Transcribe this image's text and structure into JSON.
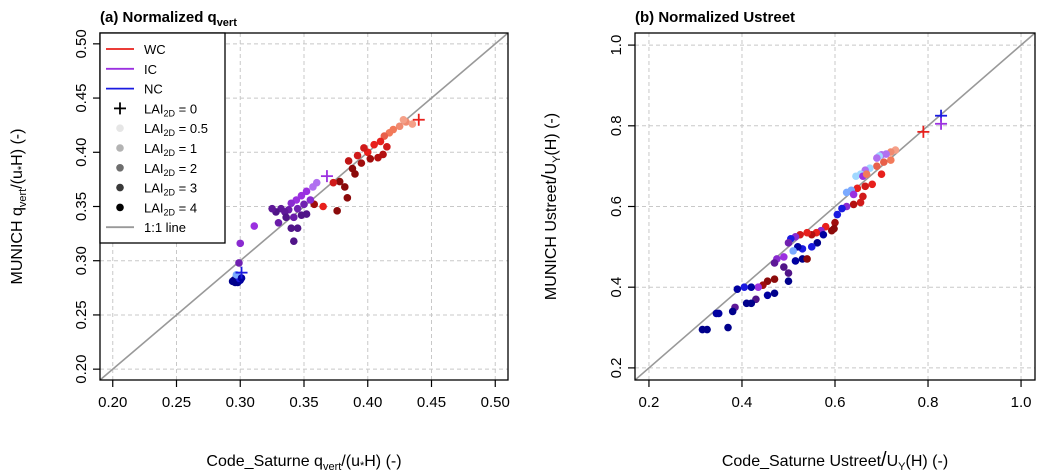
{
  "chart_data": [
    {
      "type": "scatter",
      "title": "(a) Normalized q",
      "title_sub": "vert",
      "xlabel": {
        "pre": "Code_Saturne q",
        "sub": "vert",
        "post": "/(u",
        "sub2": "*",
        "post2": "H) (-)"
      },
      "ylabel": {
        "pre": "MUNICH q",
        "sub": "vert",
        "post": "/(u",
        "sub2": "*",
        "post2": "H) (-)"
      },
      "xlim": [
        0.19,
        0.51
      ],
      "ylim": [
        0.19,
        0.51
      ],
      "xticks": [
        "0.20",
        "0.25",
        "0.30",
        "0.35",
        "0.40",
        "0.45",
        "0.50"
      ],
      "yticks": [
        "0.20",
        "0.25",
        "0.30",
        "0.35",
        "0.40",
        "0.45",
        "0.50"
      ],
      "grid": true,
      "legend_position": "top-left",
      "reference_line": "1:1 line",
      "legend": [
        {
          "label": "WC",
          "kind": "line",
          "color": "#e8201c"
        },
        {
          "label": "IC",
          "kind": "line",
          "color": "#9b30e0"
        },
        {
          "label": "NC",
          "kind": "line",
          "color": "#1a1ae0"
        },
        {
          "label": "LAI",
          "sub": "2D",
          "suffix": " = 0",
          "kind": "plus",
          "color": "#000000"
        },
        {
          "label": "LAI",
          "sub": "2D",
          "suffix": " = 0.5",
          "kind": "dot",
          "color": "#e6e6e6"
        },
        {
          "label": "LAI",
          "sub": "2D",
          "suffix": " = 1",
          "kind": "dot",
          "color": "#b3b3b3"
        },
        {
          "label": "LAI",
          "sub": "2D",
          "suffix": " = 2",
          "kind": "dot",
          "color": "#6e6e6e"
        },
        {
          "label": "LAI",
          "sub": "2D",
          "suffix": " = 3",
          "kind": "dot",
          "color": "#3a3a3a"
        },
        {
          "label": "LAI",
          "sub": "2D",
          "suffix": " = 4",
          "kind": "dot",
          "color": "#000000"
        },
        {
          "label": "1:1 line",
          "kind": "line",
          "color": "#999999"
        }
      ],
      "plus_markers": [
        {
          "x": 0.44,
          "y": 0.43,
          "color": "#e8201c"
        },
        {
          "x": 0.368,
          "y": 0.378,
          "color": "#9b30e0"
        },
        {
          "x": 0.301,
          "y": 0.289,
          "color": "#1a1ae0"
        }
      ],
      "points": [
        {
          "x": 0.43,
          "y": 0.428,
          "color": "#f08a70"
        },
        {
          "x": 0.425,
          "y": 0.424,
          "color": "#f08a70"
        },
        {
          "x": 0.42,
          "y": 0.421,
          "color": "#f27a5a"
        },
        {
          "x": 0.417,
          "y": 0.418,
          "color": "#f27a5a"
        },
        {
          "x": 0.413,
          "y": 0.415,
          "color": "#e8604a"
        },
        {
          "x": 0.435,
          "y": 0.426,
          "color": "#f5a088"
        },
        {
          "x": 0.428,
          "y": 0.43,
          "color": "#f5a088"
        },
        {
          "x": 0.41,
          "y": 0.41,
          "color": "#e8201c"
        },
        {
          "x": 0.405,
          "y": 0.407,
          "color": "#e8201c"
        },
        {
          "x": 0.4,
          "y": 0.4,
          "color": "#e8201c"
        },
        {
          "x": 0.397,
          "y": 0.404,
          "color": "#d01a1a"
        },
        {
          "x": 0.392,
          "y": 0.397,
          "color": "#d01a1a"
        },
        {
          "x": 0.415,
          "y": 0.405,
          "color": "#d01a1a"
        },
        {
          "x": 0.412,
          "y": 0.398,
          "color": "#b41010"
        },
        {
          "x": 0.408,
          "y": 0.395,
          "color": "#b41010"
        },
        {
          "x": 0.402,
          "y": 0.394,
          "color": "#a00d0d"
        },
        {
          "x": 0.395,
          "y": 0.39,
          "color": "#a00d0d"
        },
        {
          "x": 0.388,
          "y": 0.385,
          "color": "#8b0a0a"
        },
        {
          "x": 0.39,
          "y": 0.38,
          "color": "#8b0a0a"
        },
        {
          "x": 0.385,
          "y": 0.392,
          "color": "#c01515"
        },
        {
          "x": 0.382,
          "y": 0.368,
          "color": "#8b0a0a"
        },
        {
          "x": 0.378,
          "y": 0.373,
          "color": "#8b0a0a"
        },
        {
          "x": 0.373,
          "y": 0.372,
          "color": "#d01a1a"
        },
        {
          "x": 0.384,
          "y": 0.358,
          "color": "#8b0a0a"
        },
        {
          "x": 0.376,
          "y": 0.346,
          "color": "#8b0a0a"
        },
        {
          "x": 0.365,
          "y": 0.35,
          "color": "#e8201c"
        },
        {
          "x": 0.358,
          "y": 0.352,
          "color": "#a00d0d"
        },
        {
          "x": 0.36,
          "y": 0.372,
          "color": "#b070f0"
        },
        {
          "x": 0.357,
          "y": 0.368,
          "color": "#b070f0"
        },
        {
          "x": 0.352,
          "y": 0.364,
          "color": "#9b30e0"
        },
        {
          "x": 0.348,
          "y": 0.36,
          "color": "#9b30e0"
        },
        {
          "x": 0.344,
          "y": 0.356,
          "color": "#9b30e0"
        },
        {
          "x": 0.34,
          "y": 0.353,
          "color": "#8a2bd0"
        },
        {
          "x": 0.355,
          "y": 0.356,
          "color": "#8a2bd0"
        },
        {
          "x": 0.35,
          "y": 0.352,
          "color": "#7020b0"
        },
        {
          "x": 0.345,
          "y": 0.348,
          "color": "#7020b0"
        },
        {
          "x": 0.338,
          "y": 0.347,
          "color": "#6a1ca8"
        },
        {
          "x": 0.335,
          "y": 0.345,
          "color": "#5e1898"
        },
        {
          "x": 0.332,
          "y": 0.348,
          "color": "#5e1898"
        },
        {
          "x": 0.328,
          "y": 0.345,
          "color": "#501488"
        },
        {
          "x": 0.336,
          "y": 0.34,
          "color": "#501488"
        },
        {
          "x": 0.325,
          "y": 0.348,
          "color": "#5e1898"
        },
        {
          "x": 0.342,
          "y": 0.34,
          "color": "#6a1ca8"
        },
        {
          "x": 0.348,
          "y": 0.342,
          "color": "#501488"
        },
        {
          "x": 0.352,
          "y": 0.343,
          "color": "#501488"
        },
        {
          "x": 0.34,
          "y": 0.33,
          "color": "#501488"
        },
        {
          "x": 0.345,
          "y": 0.33,
          "color": "#501488"
        },
        {
          "x": 0.33,
          "y": 0.335,
          "color": "#6a1ca8"
        },
        {
          "x": 0.342,
          "y": 0.318,
          "color": "#501488"
        },
        {
          "x": 0.311,
          "y": 0.332,
          "color": "#9b30e0"
        },
        {
          "x": 0.3,
          "y": 0.316,
          "color": "#8a2bd0"
        },
        {
          "x": 0.299,
          "y": 0.298,
          "color": "#7020b0"
        },
        {
          "x": 0.297,
          "y": 0.285,
          "color": "#00008b"
        },
        {
          "x": 0.295,
          "y": 0.282,
          "color": "#00008b"
        },
        {
          "x": 0.296,
          "y": 0.28,
          "color": "#00008b"
        },
        {
          "x": 0.298,
          "y": 0.28,
          "color": "#00008b"
        },
        {
          "x": 0.3,
          "y": 0.282,
          "color": "#0000a0"
        },
        {
          "x": 0.299,
          "y": 0.284,
          "color": "#1a1ae0"
        },
        {
          "x": 0.297,
          "y": 0.287,
          "color": "#7aaaff"
        },
        {
          "x": 0.301,
          "y": 0.284,
          "color": "#0000a0"
        },
        {
          "x": 0.294,
          "y": 0.281,
          "color": "#00008b"
        }
      ]
    },
    {
      "type": "scatter",
      "title": "(b) Normalized Ustreet",
      "xlabel": {
        "pre": "Code_Saturne Ustreet",
        "slash": "/",
        "u": "U",
        "sub": "Y",
        "post": "(H) (-)"
      },
      "ylabel": {
        "pre": "MUNICH Ustreet",
        "slash": "/",
        "u": "U",
        "sub": "Y",
        "post": "(H) (-)"
      },
      "xlim": [
        0.17,
        1.03
      ],
      "ylim": [
        0.17,
        1.03
      ],
      "xticks": [
        "0.2",
        "0.4",
        "0.6",
        "0.8",
        "1.0"
      ],
      "yticks": [
        "0.2",
        "0.4",
        "0.6",
        "0.8",
        "1.0"
      ],
      "grid": true,
      "reference_line": "1:1 line",
      "plus_markers": [
        {
          "x": 0.79,
          "y": 0.785,
          "color": "#e8201c"
        },
        {
          "x": 0.828,
          "y": 0.825,
          "color": "#1a1ae0"
        },
        {
          "x": 0.828,
          "y": 0.805,
          "color": "#9b30e0"
        }
      ],
      "points": [
        {
          "x": 0.73,
          "y": 0.74,
          "color": "#f5a088"
        },
        {
          "x": 0.72,
          "y": 0.735,
          "color": "#f08a70"
        },
        {
          "x": 0.71,
          "y": 0.73,
          "color": "#b070f0"
        },
        {
          "x": 0.7,
          "y": 0.728,
          "color": "#b070f0"
        },
        {
          "x": 0.695,
          "y": 0.725,
          "color": "#a0d8ff"
        },
        {
          "x": 0.69,
          "y": 0.72,
          "color": "#b070f0"
        },
        {
          "x": 0.72,
          "y": 0.715,
          "color": "#f27a5a"
        },
        {
          "x": 0.705,
          "y": 0.71,
          "color": "#e8604a"
        },
        {
          "x": 0.69,
          "y": 0.7,
          "color": "#e8604a"
        },
        {
          "x": 0.675,
          "y": 0.695,
          "color": "#a0d8ff"
        },
        {
          "x": 0.665,
          "y": 0.69,
          "color": "#b070f0"
        },
        {
          "x": 0.655,
          "y": 0.68,
          "color": "#a0d8ff"
        },
        {
          "x": 0.645,
          "y": 0.675,
          "color": "#a0d8ff"
        },
        {
          "x": 0.66,
          "y": 0.675,
          "color": "#9b30e0"
        },
        {
          "x": 0.668,
          "y": 0.68,
          "color": "#f27a5a"
        },
        {
          "x": 0.7,
          "y": 0.68,
          "color": "#e8201c"
        },
        {
          "x": 0.68,
          "y": 0.655,
          "color": "#e8201c"
        },
        {
          "x": 0.665,
          "y": 0.65,
          "color": "#d01a1a"
        },
        {
          "x": 0.648,
          "y": 0.645,
          "color": "#e8201c"
        },
        {
          "x": 0.635,
          "y": 0.64,
          "color": "#7aaaff"
        },
        {
          "x": 0.625,
          "y": 0.635,
          "color": "#7aaaff"
        },
        {
          "x": 0.64,
          "y": 0.63,
          "color": "#9b30e0"
        },
        {
          "x": 0.66,
          "y": 0.625,
          "color": "#d01a1a"
        },
        {
          "x": 0.655,
          "y": 0.61,
          "color": "#d01a1a"
        },
        {
          "x": 0.64,
          "y": 0.605,
          "color": "#b41010"
        },
        {
          "x": 0.625,
          "y": 0.6,
          "color": "#8a2bd0"
        },
        {
          "x": 0.615,
          "y": 0.595,
          "color": "#1a1ae0"
        },
        {
          "x": 0.605,
          "y": 0.58,
          "color": "#1a1ae0"
        },
        {
          "x": 0.6,
          "y": 0.56,
          "color": "#a00d0d"
        },
        {
          "x": 0.598,
          "y": 0.545,
          "color": "#8b0a0a"
        },
        {
          "x": 0.593,
          "y": 0.54,
          "color": "#8b0a0a"
        },
        {
          "x": 0.58,
          "y": 0.55,
          "color": "#e8201c"
        },
        {
          "x": 0.57,
          "y": 0.54,
          "color": "#8a2bd0"
        },
        {
          "x": 0.56,
          "y": 0.535,
          "color": "#e8201c"
        },
        {
          "x": 0.55,
          "y": 0.53,
          "color": "#b41010"
        },
        {
          "x": 0.54,
          "y": 0.535,
          "color": "#e8201c"
        },
        {
          "x": 0.525,
          "y": 0.53,
          "color": "#d01a1a"
        },
        {
          "x": 0.515,
          "y": 0.525,
          "color": "#8a2bd0"
        },
        {
          "x": 0.505,
          "y": 0.52,
          "color": "#1a1ae0"
        },
        {
          "x": 0.5,
          "y": 0.51,
          "color": "#7020b0"
        },
        {
          "x": 0.575,
          "y": 0.53,
          "color": "#0000a0"
        },
        {
          "x": 0.562,
          "y": 0.51,
          "color": "#00008b"
        },
        {
          "x": 0.55,
          "y": 0.5,
          "color": "#1a1ae0"
        },
        {
          "x": 0.53,
          "y": 0.495,
          "color": "#1a1ae0"
        },
        {
          "x": 0.52,
          "y": 0.5,
          "color": "#0000a0"
        },
        {
          "x": 0.51,
          "y": 0.49,
          "color": "#7aaaff"
        },
        {
          "x": 0.49,
          "y": 0.475,
          "color": "#9b30e0"
        },
        {
          "x": 0.475,
          "y": 0.47,
          "color": "#8a2bd0"
        },
        {
          "x": 0.47,
          "y": 0.46,
          "color": "#5e1898"
        },
        {
          "x": 0.49,
          "y": 0.45,
          "color": "#501488"
        },
        {
          "x": 0.5,
          "y": 0.435,
          "color": "#501488"
        },
        {
          "x": 0.515,
          "y": 0.465,
          "color": "#0000a0"
        },
        {
          "x": 0.53,
          "y": 0.47,
          "color": "#00008b"
        },
        {
          "x": 0.54,
          "y": 0.47,
          "color": "#8b0a0a"
        },
        {
          "x": 0.47,
          "y": 0.42,
          "color": "#8b0a0a"
        },
        {
          "x": 0.455,
          "y": 0.415,
          "color": "#8b0a0a"
        },
        {
          "x": 0.445,
          "y": 0.405,
          "color": "#a00d0d"
        },
        {
          "x": 0.435,
          "y": 0.4,
          "color": "#9b30e0"
        },
        {
          "x": 0.42,
          "y": 0.4,
          "color": "#0000a0"
        },
        {
          "x": 0.405,
          "y": 0.4,
          "color": "#1a1ae0"
        },
        {
          "x": 0.39,
          "y": 0.395,
          "color": "#0000a0"
        },
        {
          "x": 0.5,
          "y": 0.415,
          "color": "#00008b"
        },
        {
          "x": 0.47,
          "y": 0.385,
          "color": "#00008b"
        },
        {
          "x": 0.455,
          "y": 0.38,
          "color": "#0000a0"
        },
        {
          "x": 0.43,
          "y": 0.37,
          "color": "#501488"
        },
        {
          "x": 0.42,
          "y": 0.36,
          "color": "#00008b"
        },
        {
          "x": 0.41,
          "y": 0.36,
          "color": "#00008b"
        },
        {
          "x": 0.385,
          "y": 0.35,
          "color": "#5e1898"
        },
        {
          "x": 0.38,
          "y": 0.34,
          "color": "#00008b"
        },
        {
          "x": 0.35,
          "y": 0.335,
          "color": "#0000a0"
        },
        {
          "x": 0.345,
          "y": 0.335,
          "color": "#0000a0"
        },
        {
          "x": 0.37,
          "y": 0.3,
          "color": "#00008b"
        },
        {
          "x": 0.325,
          "y": 0.295,
          "color": "#00008b"
        },
        {
          "x": 0.315,
          "y": 0.295,
          "color": "#00008b"
        }
      ]
    }
  ]
}
